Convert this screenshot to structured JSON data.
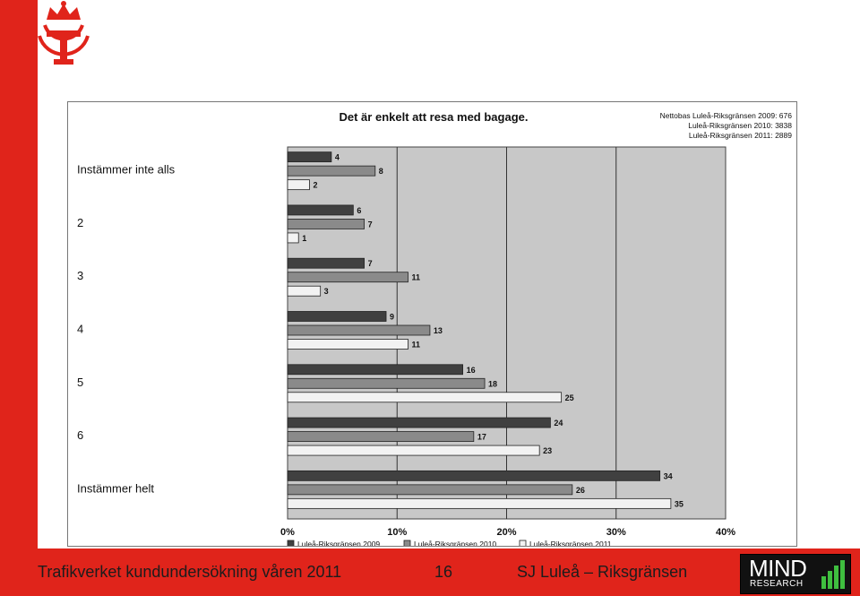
{
  "footer": {
    "left_text": "Trafikverket kundundersökning våren 2011",
    "page_number": "16",
    "right_text": "SJ Luleå – Riksgränsen"
  },
  "logo_mind": {
    "word": "MIND",
    "sub": "RESEARCH"
  },
  "colors": {
    "brand_red": "#e0241b",
    "plot_background": "#c8c8c8",
    "series_2009": "#404040",
    "series_2010": "#8a8a8a",
    "series_2011": "#f2f2f2"
  },
  "chart_data": {
    "type": "bar",
    "orientation": "horizontal",
    "title": "Det är enkelt att resa med bagage.",
    "base_note": [
      "Nettobas  Luleå-Riksgränsen 2009: 676",
      "Luleå-Riksgränsen 2010: 3838",
      "Luleå-Riksgränsen 2011: 2889"
    ],
    "categories": [
      "Instämmer inte alls",
      "2",
      "3",
      "4",
      "5",
      "6",
      "Instämmer helt"
    ],
    "series": [
      {
        "name": "Luleå-Riksgränsen 2009",
        "values": [
          4,
          6,
          7,
          9,
          16,
          24,
          34
        ]
      },
      {
        "name": "Luleå-Riksgränsen 2010",
        "values": [
          8,
          7,
          11,
          13,
          18,
          17,
          26
        ]
      },
      {
        "name": "Luleå-Riksgränsen 2011",
        "values": [
          2,
          1,
          3,
          11,
          25,
          23,
          35
        ]
      }
    ],
    "xlim": [
      0,
      40
    ],
    "xticks": [
      "0%",
      "10%",
      "20%",
      "30%",
      "40%"
    ],
    "grid": true,
    "legend_position": "bottom"
  }
}
